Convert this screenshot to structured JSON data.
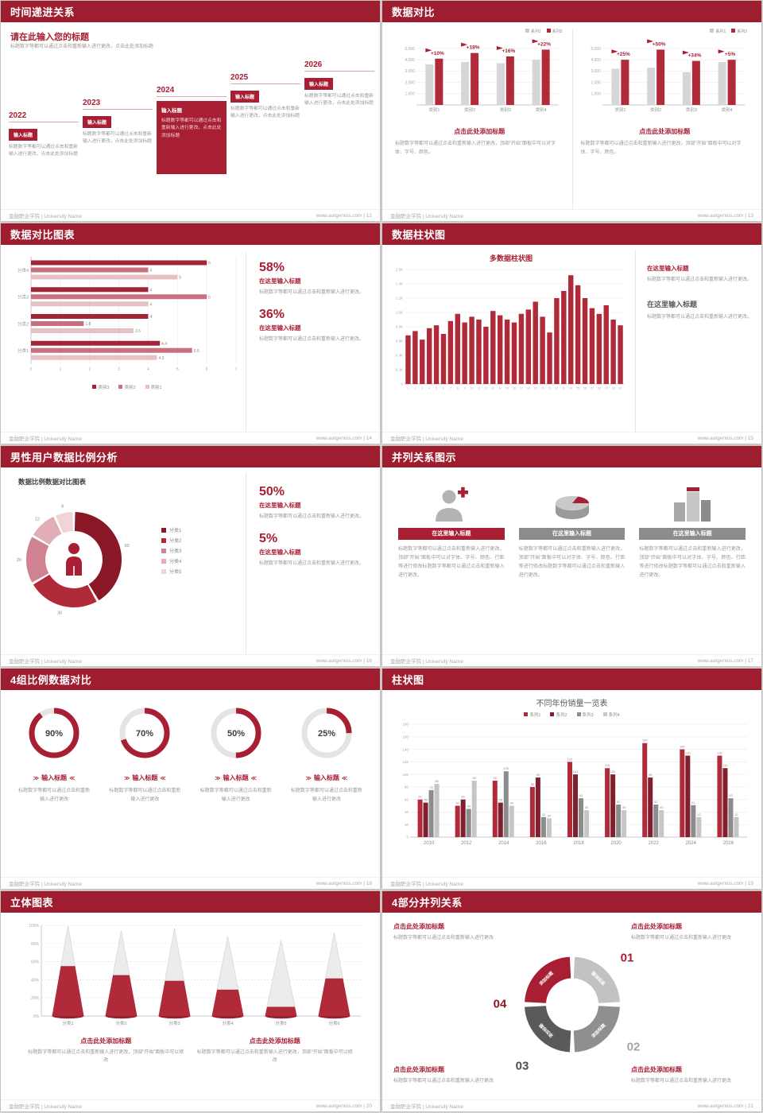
{
  "palette": {
    "page_bg": "#d8d8d8",
    "header": "#9e1e30",
    "accent": "#a81e32",
    "red": "#b02a3a",
    "red_dark": "#8a1726",
    "pink_mid": "#c9707f",
    "pink_light": "#e6c0c5",
    "gray_bar": "#d6d6d6",
    "gray_mid": "#8c8c8c",
    "gray_dark": "#595959",
    "gray_light": "#c6c6c6"
  },
  "icons": {
    "chev_left": "≫",
    "chev_right": "≪"
  },
  "footer": {
    "left": "金融职业学院 | University Name",
    "site": "www.aotgenius.com"
  },
  "slides": [
    {
      "page": "12",
      "type": "timeline",
      "title": "时间递进关系",
      "heading": "请在此输入您的标题",
      "subtext": "标题数字等都可以通过点击和重新输入进行更改，点击此处添加标题",
      "years": [
        "2022",
        "2023",
        "2024",
        "2025",
        "2026"
      ],
      "highlight_index": 2,
      "item_label": "输入标题",
      "item_desc": "标题数字等都可以通过点击和重新输入进行更改，点击此处添加标题"
    },
    {
      "page": "13",
      "type": "dualbar",
      "title": "数据对比",
      "legend": [
        "系列1",
        "系列2"
      ],
      "caption": "点击此处添加标题",
      "desc": "标题数字等都可以通过点击和重新输入进行更改，顶部“开始”面板中可以对字体、字号、颜色。",
      "charts": [
        {
          "categories": [
            "类别1",
            "类别2",
            "类别3",
            "类别4"
          ],
          "series1": [
            3600,
            3800,
            3700,
            4000
          ],
          "series2": [
            4100,
            4600,
            4300,
            4900
          ],
          "labels": [
            "+10%",
            "+18%",
            "+16%",
            "+22%"
          ],
          "yticks": [
            "5,000",
            "4,000",
            "3,000",
            "2,000",
            "1,000"
          ],
          "ymax": 5000
        },
        {
          "categories": [
            "类别1",
            "类别2",
            "类别3",
            "类别4"
          ],
          "series1": [
            3200,
            3300,
            2900,
            3800
          ],
          "series2": [
            4000,
            4900,
            3900,
            4000
          ],
          "labels": [
            "+25%",
            "+50%",
            "+34%",
            "+5%"
          ],
          "yticks": [
            "5,000",
            "4,000",
            "3,000",
            "2,000",
            "1,000"
          ],
          "ymax": 5000
        }
      ]
    },
    {
      "page": "14",
      "type": "hbar",
      "title": "数据对比图表",
      "chart_data": {
        "type": "bar",
        "orientation": "horizontal",
        "categories": [
          "分类4",
          "分类3",
          "分类2",
          "分类1"
        ],
        "values": [
          [
            6,
            4,
            5
          ],
          [
            4,
            6,
            4
          ],
          [
            4,
            1.8,
            3.5
          ],
          [
            4.4,
            5.5,
            4.3
          ]
        ],
        "xlim": [
          0,
          7
        ],
        "xticks": [
          "0",
          "1",
          "2",
          "3",
          "4",
          "5",
          "6",
          "7"
        ],
        "legend": [
          "类别3",
          "类别2",
          "类别1"
        ]
      },
      "stats": [
        {
          "pct": "58%",
          "heading": "在这里输入标题",
          "desc": "标题数字等都可以通过点击和重新输入进行更改。"
        },
        {
          "pct": "36%",
          "heading": "在这里输入标题",
          "desc": "标题数字等都可以通过点击和重新输入进行更改。"
        }
      ]
    },
    {
      "page": "15",
      "type": "columns",
      "title": "数据柱状图",
      "chart_data": {
        "type": "bar",
        "title": "多数据柱状图",
        "values": [
          680,
          740,
          620,
          780,
          820,
          700,
          880,
          980,
          860,
          940,
          900,
          800,
          1020,
          960,
          900,
          860,
          980,
          1040,
          1150,
          940,
          720,
          1200,
          1300,
          1520,
          1380,
          1200,
          1060,
          980,
          1100,
          900,
          820
        ],
        "xlabels": [
          "1",
          "2",
          "3",
          "4",
          "5",
          "6",
          "7",
          "8",
          "9",
          "10",
          "11",
          "12",
          "13",
          "14",
          "15",
          "16",
          "17",
          "18",
          "19",
          "20",
          "21",
          "22",
          "23",
          "24",
          "25",
          "26",
          "27",
          "28",
          "29",
          "30",
          "31"
        ],
        "yticks": [
          "1.6K",
          "1.4K",
          "1.2K",
          "1.0K",
          "0.8K",
          "0.6K",
          "0.4K",
          "0.2K",
          "0"
        ],
        "ylim": [
          0,
          1600
        ]
      },
      "blocks": [
        {
          "heading": "在这里输入标题",
          "desc": "标题数字等都可以通过点击和重新输入进行更改。",
          "style": "red"
        },
        {
          "heading": "在这里输入标题",
          "desc": "标题数字等都可以通过点击和重新输入进行更改。",
          "style": "dark"
        }
      ]
    },
    {
      "page": "16",
      "type": "donut",
      "title": "男性用户数据比例分析",
      "chart_data": {
        "type": "pie",
        "title": "数据比例数据对比图表",
        "values": [
          50,
          30,
          20,
          12,
          8
        ],
        "labels": [
          "50",
          "30",
          "20",
          "12",
          "8"
        ],
        "legend": [
          "分类1",
          "分类2",
          "分类3",
          "分类4",
          "分类5"
        ]
      },
      "stats": [
        {
          "pct": "50%",
          "heading": "在这里输入标题",
          "desc": "标题数字等都可以通过点击和重新输入进行更改。"
        },
        {
          "pct": "5%",
          "heading": "在这里输入标题",
          "desc": "标题数字等都可以通过点击和重新输入进行更改。"
        }
      ]
    },
    {
      "page": "17",
      "type": "trio",
      "title": "并列关系图示",
      "items": [
        {
          "icon": "nurse",
          "accent": true,
          "header": "在这里输入标题",
          "desc": "标题数字等都可以通过点击和重新输入进行更改，顶部“开始”面板中可以对字体、字号、颜色、行距等进行修改标题数字等都可以通过点击和重新输入进行更改。"
        },
        {
          "icon": "pie",
          "accent": false,
          "header": "在这里输入标题",
          "desc": "标题数字等都可以通过点击和重新输入进行更改，顶部“开始”面板中可以对字体、字号、颜色、行距等进行修改标题数字等都可以通过点击和重新输入进行更改。"
        },
        {
          "icon": "building",
          "accent": false,
          "header": "在这里输入标题",
          "desc": "标题数字等都可以通过点击和重新输入进行更改，顶部“开始”面板中可以对字体、字号、颜色、行距等进行修改标题数字等都可以通过点击和重新输入进行更改。"
        }
      ]
    },
    {
      "page": "18",
      "type": "rings",
      "title": "4组比例数据对比",
      "label": "输入标题",
      "desc": "标题数字等都可以通过点击和重新输入进行更改",
      "chart_data": {
        "type": "pie",
        "rings": [
          90,
          70,
          50,
          25
        ]
      }
    },
    {
      "page": "19",
      "type": "grouped",
      "title": "柱状图",
      "chart_data": {
        "type": "bar",
        "title": "不同年份销量一览表",
        "legend": [
          "系列1",
          "系列2",
          "系列3",
          "系列4"
        ],
        "categories": [
          "2010",
          "2012",
          "2014",
          "2016",
          "2018",
          "2020",
          "2022",
          "2024",
          "2026"
        ],
        "series": [
          {
            "name": "系列1",
            "values": [
              60,
              50,
              90,
              80,
              120,
              110,
              150,
              140,
              130
            ]
          },
          {
            "name": "系列2",
            "values": [
              55,
              60,
              55,
              95,
              100,
              100,
              95,
              130,
              110
            ]
          },
          {
            "name": "系列3",
            "values": [
              75,
              45,
              105,
              32,
              62,
              52,
              52,
              51,
              62
            ]
          },
          {
            "name": "系列4",
            "values": [
              85,
              90,
              50,
              30,
              43,
              43,
              43,
              32,
              32
            ]
          }
        ],
        "yticks": [
          "0",
          "20",
          "40",
          "60",
          "80",
          "100",
          "120",
          "140",
          "160",
          "180"
        ],
        "ylim": [
          0,
          180
        ]
      }
    },
    {
      "page": "20",
      "type": "cones",
      "title": "立体图表",
      "chart_data": {
        "type": "bar",
        "categories": [
          "分类1",
          "分类2",
          "分类3",
          "分类4",
          "分类5",
          "分类6"
        ],
        "heights": [
          100,
          94,
          97,
          88,
          84,
          92
        ],
        "red_fraction": [
          0.55,
          0.48,
          0.4,
          0.33,
          0.12,
          0.45
        ],
        "yticks": [
          "100%",
          "80%",
          "60%",
          "40%",
          "20%",
          "0%"
        ]
      },
      "blocks": [
        {
          "heading": "点击此处添加标题",
          "desc": "标题数字等都可以通过点击和重新输入进行更改，顶部“开始”面板中可以修改"
        },
        {
          "heading": "点击此处添加标题",
          "desc": "标题数字等都可以通过点击和重新输入进行更改，顶部“开始”面板中可以修改"
        }
      ]
    },
    {
      "page": "21",
      "type": "quad",
      "title": "4部分并列关系",
      "segment_label": "添加标题",
      "numbers": [
        "01",
        "02",
        "03",
        "04"
      ],
      "blocks": [
        {
          "heading": "点击此处添加标题",
          "desc": "标题数字等都可以通过点击和重新输入进行更改"
        },
        {
          "heading": "点击此处添加标题",
          "desc": "标题数字等都可以通过点击和重新输入进行更改"
        },
        {
          "heading": "点击此处添加标题",
          "desc": "标题数字等都可以通过点击和重新输入进行更改"
        },
        {
          "heading": "点击此处添加标题",
          "desc": "标题数字等都可以通过点击和重新输入进行更改"
        }
      ]
    }
  ]
}
